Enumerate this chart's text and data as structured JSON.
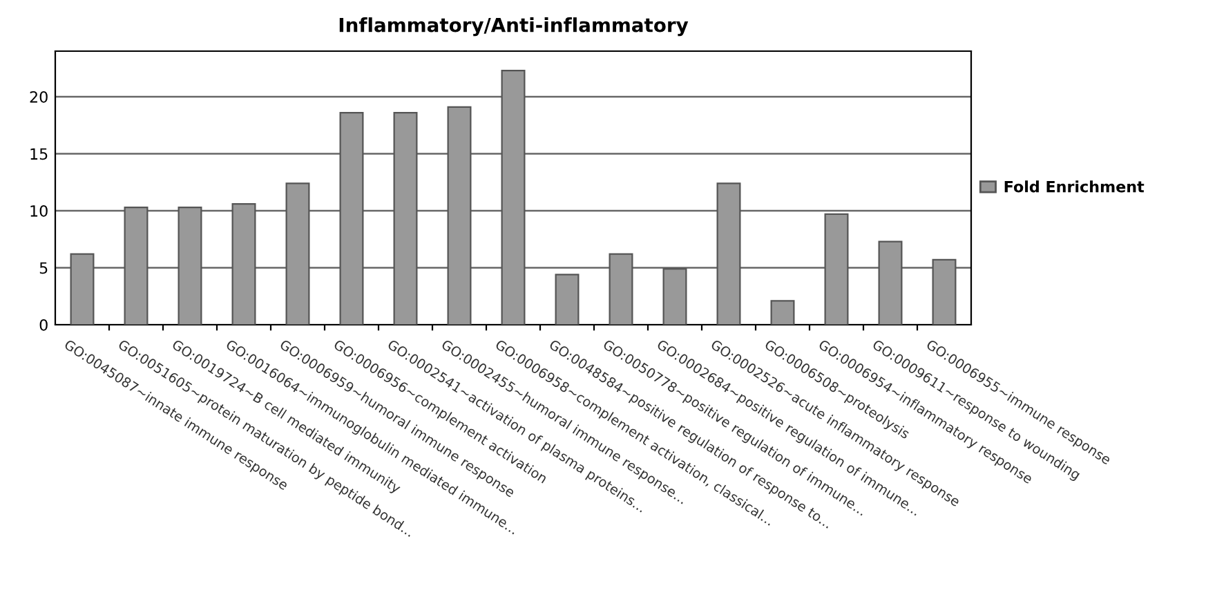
{
  "chart_data": {
    "type": "bar",
    "title": "Inflammatory/Anti-inflammatory",
    "categories": [
      "GO:0045087~innate immune response",
      "GO:0051605~protein maturation by peptide bond...",
      "GO:0019724~B cell mediated immunity",
      "GO:0016064~immunoglobulin mediated immune...",
      "GO:0006959~humoral immune response",
      "GO:0006956~complement activation",
      "GO:0002541~activation of plasma proteins...",
      "GO:0002455~humoral immune response...",
      "GO:0006958~complement activation, classical...",
      "GO:0048584~positive regulation of response to...",
      "GO:0050778~positive regulation of immune...",
      "GO:0002684~positive regulation of immune...",
      "GO:0002526~acute inflammatory response",
      "GO:0006508~proteolysis",
      "GO:0006954~inflammatory response",
      "GO:0009611~response to wounding",
      "GO:0006955~immune response"
    ],
    "series": [
      {
        "name": "Fold Enrichment",
        "color": "#999999",
        "values": [
          6.2,
          10.3,
          10.3,
          10.6,
          12.4,
          18.6,
          18.6,
          19.1,
          22.3,
          4.4,
          6.2,
          4.9,
          12.4,
          2.1,
          9.7,
          7.3,
          5.7
        ]
      }
    ],
    "ylim": [
      0,
      24
    ],
    "yticks": [
      0,
      5,
      10,
      15,
      20
    ],
    "grid": "y",
    "legend": "right"
  }
}
